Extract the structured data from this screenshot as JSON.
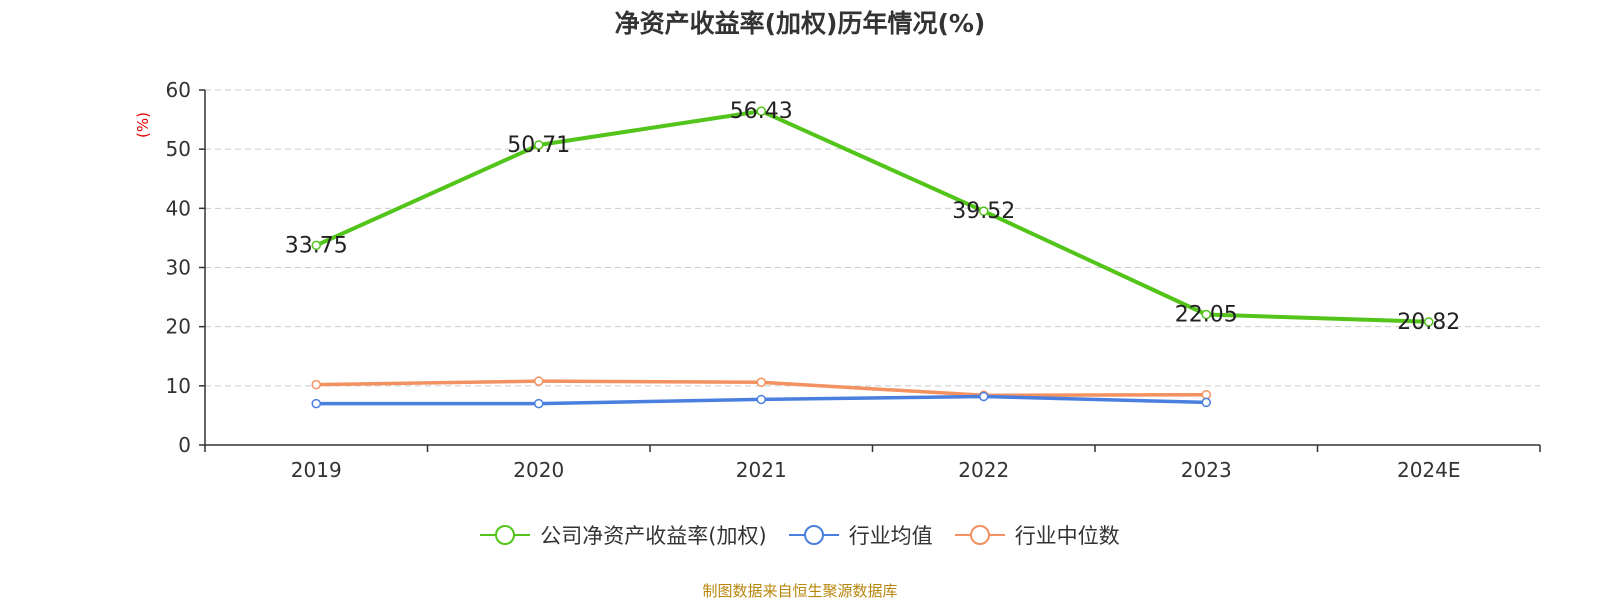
{
  "chart_data": {
    "type": "line",
    "title": "净资产收益率(加权)历年情况(%)",
    "ylabel": "(%)",
    "xlabel": "",
    "categories": [
      "2019",
      "2020",
      "2021",
      "2022",
      "2023",
      "2024E"
    ],
    "ylim": [
      0,
      60
    ],
    "yticks": [
      0,
      10,
      20,
      30,
      40,
      50,
      60
    ],
    "grid": true,
    "legend_position": "bottom",
    "series": [
      {
        "name": "公司净资产收益率(加权)",
        "color": "#52c41a",
        "values": [
          33.75,
          50.71,
          56.43,
          39.52,
          22.05,
          20.82
        ],
        "labels": [
          "33.75",
          "50.71",
          "56.43",
          "39.52",
          "22.05",
          "20.82"
        ]
      },
      {
        "name": "行业均值",
        "color": "#4a7fe0",
        "values": [
          7.0,
          7.0,
          7.7,
          8.2,
          7.2,
          null
        ]
      },
      {
        "name": "行业中位数",
        "color": "#f39160",
        "values": [
          10.2,
          10.8,
          10.6,
          8.4,
          8.5,
          null
        ]
      }
    ]
  },
  "footer": {
    "source": "制图数据来自恒生聚源数据库"
  }
}
